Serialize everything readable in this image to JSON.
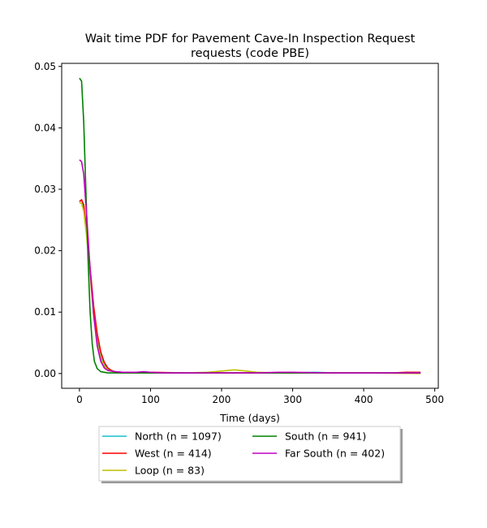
{
  "chart_data": {
    "type": "line",
    "title": "Wait time PDF for Pavement Cave-In Inspection Request\nrequests (code PBE)",
    "xlabel": "Time (days)",
    "ylabel": "",
    "xlim": [
      -25,
      505
    ],
    "ylim": [
      -0.0024,
      0.0505
    ],
    "xticks": [
      0,
      100,
      200,
      300,
      400,
      500
    ],
    "yticks": [
      0.0,
      0.01,
      0.02,
      0.03,
      0.04,
      0.05
    ],
    "xtick_labels": [
      "0",
      "100",
      "200",
      "300",
      "400",
      "500"
    ],
    "ytick_labels": [
      "0.00",
      "0.01",
      "0.02",
      "0.03",
      "0.04",
      "0.05"
    ],
    "grid": false,
    "legend": {
      "placement": "below",
      "columns": 2
    },
    "series": [
      {
        "name": "North (n = 1097)",
        "color": "#17becf",
        "x": [
          0,
          3,
          6,
          10,
          15,
          20,
          25,
          30,
          35,
          40,
          50,
          60,
          80,
          100,
          150,
          200,
          250,
          300,
          330,
          360,
          400,
          440,
          480
        ],
        "y": [
          0.028,
          0.0282,
          0.0272,
          0.023,
          0.0165,
          0.01,
          0.0055,
          0.0028,
          0.0014,
          0.0007,
          0.0003,
          0.0002,
          0.0001,
          0.0001,
          0.0001,
          0.0001,
          0.0001,
          0.0001,
          0.0002,
          0.0001,
          0.0001,
          0.0001,
          0.0001
        ]
      },
      {
        "name": "West (n = 414)",
        "color": "#ff0000",
        "x": [
          0,
          3,
          6,
          10,
          15,
          20,
          25,
          30,
          35,
          40,
          45,
          50,
          60,
          80,
          100,
          150,
          200,
          250,
          300,
          350,
          400,
          440,
          460,
          480
        ],
        "y": [
          0.028,
          0.0283,
          0.0275,
          0.0235,
          0.0172,
          0.011,
          0.0065,
          0.0035,
          0.0018,
          0.0009,
          0.0005,
          0.0003,
          0.0002,
          0.0002,
          0.0002,
          0.0001,
          0.0001,
          0.0001,
          0.0001,
          0.0001,
          0.0001,
          0.0001,
          0.0002,
          0.0002
        ]
      },
      {
        "name": "Loop (n = 83)",
        "color": "#bfbf00",
        "x": [
          0,
          3,
          6,
          10,
          15,
          20,
          25,
          30,
          35,
          40,
          50,
          60,
          80,
          100,
          150,
          180,
          200,
          218,
          235,
          250,
          280,
          300,
          400,
          480
        ],
        "y": [
          0.0278,
          0.0277,
          0.0265,
          0.0225,
          0.016,
          0.0095,
          0.005,
          0.0025,
          0.0012,
          0.0006,
          0.0002,
          0.0001,
          0.0001,
          0.0001,
          0.0001,
          0.0002,
          0.0004,
          0.0006,
          0.0004,
          0.0002,
          0.0001,
          0.0001,
          0.0001,
          0.0
        ]
      },
      {
        "name": "South (n = 941)",
        "color": "#008000",
        "x": [
          0,
          3,
          6,
          9,
          12,
          15,
          18,
          21,
          25,
          30,
          35,
          40,
          50,
          60,
          80,
          100,
          150,
          200,
          250,
          300,
          350,
          400,
          480
        ],
        "y": [
          0.0481,
          0.0476,
          0.041,
          0.03,
          0.019,
          0.01,
          0.0048,
          0.002,
          0.0008,
          0.0003,
          0.0002,
          0.0001,
          0.0001,
          0.0001,
          0.0001,
          0.0001,
          0.0001,
          0.0001,
          0.0001,
          0.0001,
          0.0001,
          0.0001,
          0.0001
        ]
      },
      {
        "name": "Far South (n = 402)",
        "color": "#bf00bf",
        "x": [
          0,
          3,
          6,
          10,
          15,
          20,
          25,
          30,
          35,
          40,
          50,
          60,
          70,
          80,
          90,
          100,
          120,
          150,
          200,
          250,
          280,
          300,
          350,
          400,
          440,
          480
        ],
        "y": [
          0.0348,
          0.0345,
          0.0325,
          0.026,
          0.017,
          0.0095,
          0.0045,
          0.002,
          0.0009,
          0.0005,
          0.0003,
          0.0002,
          0.0002,
          0.0002,
          0.0003,
          0.0002,
          0.0001,
          0.0001,
          0.0001,
          0.0001,
          0.0002,
          0.0002,
          0.0001,
          0.0001,
          0.0001,
          0.0001
        ]
      }
    ]
  }
}
